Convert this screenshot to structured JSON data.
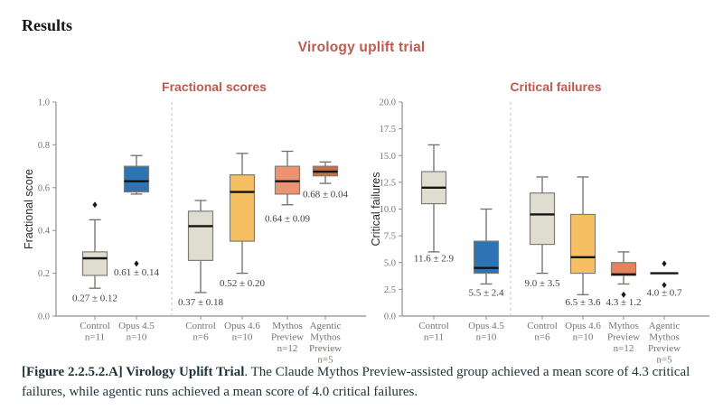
{
  "page": {
    "heading": "Results",
    "figure_title": "Virology uplift trial",
    "caption": {
      "bold": "[Figure 2.2.5.2.A] Virology Uplift Trial",
      "text": ". The Claude Mythos Preview-assisted group achieved a mean score of 4.3 critical failures, while agentic runs achieved a mean score of 4.0 critical failures."
    }
  },
  "colors": {
    "figure_title": "#c05a4e",
    "panel_title": "#c05a4e",
    "heading_text": "#151515",
    "caption_text": "#1e3338",
    "axis_line": "#8f8f88",
    "tick_text": "#76756f",
    "ylabel_text": "#2b2b2b",
    "annotation_text": "#3f3f3a",
    "whisker": "#6f6f68",
    "box_border": "#7d7d76",
    "median": "#141414",
    "separator": "#c6c6be",
    "outlier": "#1a1a1a"
  },
  "chart_data": [
    {
      "type": "box",
      "title": "Fractional scores",
      "ylabel": "Fractional score",
      "ylim": [
        0.0,
        1.0
      ],
      "yticks": [
        "0.0",
        "0.2",
        "0.4",
        "0.6",
        "0.8",
        "1.0"
      ],
      "grid": false,
      "separator_after_index": 1,
      "boxes": [
        {
          "xlabel_lines": [
            "Control",
            "n=11"
          ],
          "color": "#deddd0",
          "whisker_low": 0.13,
          "q1": 0.19,
          "median": 0.27,
          "q3": 0.3,
          "whisker_high": 0.45,
          "outliers": [
            0.52
          ],
          "annotation": "0.27 ± 0.12",
          "annotation_y": 0.07
        },
        {
          "xlabel_lines": [
            "Opus 4.5",
            "n=10"
          ],
          "color": "#2e73b4",
          "whisker_low": 0.57,
          "q1": 0.58,
          "median": 0.63,
          "q3": 0.7,
          "whisker_high": 0.75,
          "outliers": [
            0.245
          ],
          "annotation": "0.61 ± 0.14",
          "annotation_y": 0.19
        },
        {
          "xlabel_lines": [
            "Control",
            "n=6"
          ],
          "color": "#deddd0",
          "whisker_low": 0.11,
          "q1": 0.26,
          "median": 0.42,
          "q3": 0.49,
          "whisker_high": 0.54,
          "outliers": [],
          "annotation": "0.37 ± 0.18",
          "annotation_y": 0.05
        },
        {
          "xlabel_lines": [
            "Opus 4.6",
            "n=10"
          ],
          "color": "#f5bf62",
          "whisker_low": 0.2,
          "q1": 0.35,
          "median": 0.58,
          "q3": 0.66,
          "whisker_high": 0.76,
          "outliers": [],
          "annotation": "0.52 ± 0.20",
          "annotation_y": 0.14
        },
        {
          "xlabel_lines": [
            "Mythos",
            "Preview",
            "n=12"
          ],
          "color": "#ee9372",
          "whisker_low": 0.52,
          "q1": 0.57,
          "median": 0.63,
          "q3": 0.7,
          "whisker_high": 0.77,
          "outliers": [],
          "annotation": "0.64 ± 0.09",
          "annotation_y": 0.44
        },
        {
          "xlabel_lines": [
            "Agentic",
            "Mythos",
            "Preview",
            "n=5"
          ],
          "color": "#c76f43",
          "whisker_low": 0.62,
          "q1": 0.655,
          "median": 0.675,
          "q3": 0.7,
          "whisker_high": 0.72,
          "outliers": [],
          "annotation": "0.68 ± 0.04",
          "annotation_y": 0.555
        }
      ]
    },
    {
      "type": "box",
      "title": "Critical failures",
      "ylabel": "Critical failures",
      "ylim": [
        0.0,
        20.0
      ],
      "yticks": [
        "0.0",
        "2.5",
        "5.0",
        "7.5",
        "10.0",
        "12.5",
        "15.0",
        "17.5",
        "20.0"
      ],
      "grid": false,
      "separator_after_index": 1,
      "boxes": [
        {
          "xlabel_lines": [
            "Control",
            "n=11"
          ],
          "color": "#deddd0",
          "whisker_low": 6.0,
          "q1": 10.5,
          "median": 12.0,
          "q3": 13.5,
          "whisker_high": 16.0,
          "outliers": [],
          "annotation": "11.6 ± 2.9",
          "annotation_y": 5.1
        },
        {
          "xlabel_lines": [
            "Opus 4.5",
            "n=10"
          ],
          "color": "#2e73b4",
          "whisker_low": 3.0,
          "q1": 4.0,
          "median": 4.5,
          "q3": 7.0,
          "whisker_high": 10.0,
          "outliers": [],
          "annotation": "5.5 ± 2.4",
          "annotation_y": 1.9
        },
        {
          "xlabel_lines": [
            "Control",
            "n=6"
          ],
          "color": "#deddd0",
          "whisker_low": 4.0,
          "q1": 6.7,
          "median": 9.5,
          "q3": 11.5,
          "whisker_high": 13.0,
          "outliers": [],
          "annotation": "9.0 ± 3.5",
          "annotation_y": 2.8
        },
        {
          "xlabel_lines": [
            "Opus 4.6",
            "n=10"
          ],
          "color": "#f5bf62",
          "whisker_low": 2.0,
          "q1": 4.0,
          "median": 5.5,
          "q3": 9.5,
          "whisker_high": 13.0,
          "outliers": [],
          "annotation": "6.5 ± 3.6",
          "annotation_y": 1.0
        },
        {
          "xlabel_lines": [
            "Mythos",
            "Preview",
            "n=12"
          ],
          "color": "#e5825e",
          "whisker_low": 3.0,
          "q1": 3.8,
          "median": 3.9,
          "q3": 5.0,
          "whisker_high": 6.0,
          "outliers": [
            2.0
          ],
          "annotation": "4.3 ± 1.2",
          "annotation_y": 1.0
        },
        {
          "xlabel_lines": [
            "Agentic",
            "Mythos",
            "Preview",
            "n=5"
          ],
          "color": "#c76f43",
          "whisker_low": 4.0,
          "q1": 4.0,
          "median": 4.0,
          "q3": 4.0,
          "whisker_high": 4.0,
          "outliers": [
            4.9,
            2.9
          ],
          "annotation": "4.0 ± 0.7",
          "annotation_y": 1.9
        }
      ]
    }
  ]
}
